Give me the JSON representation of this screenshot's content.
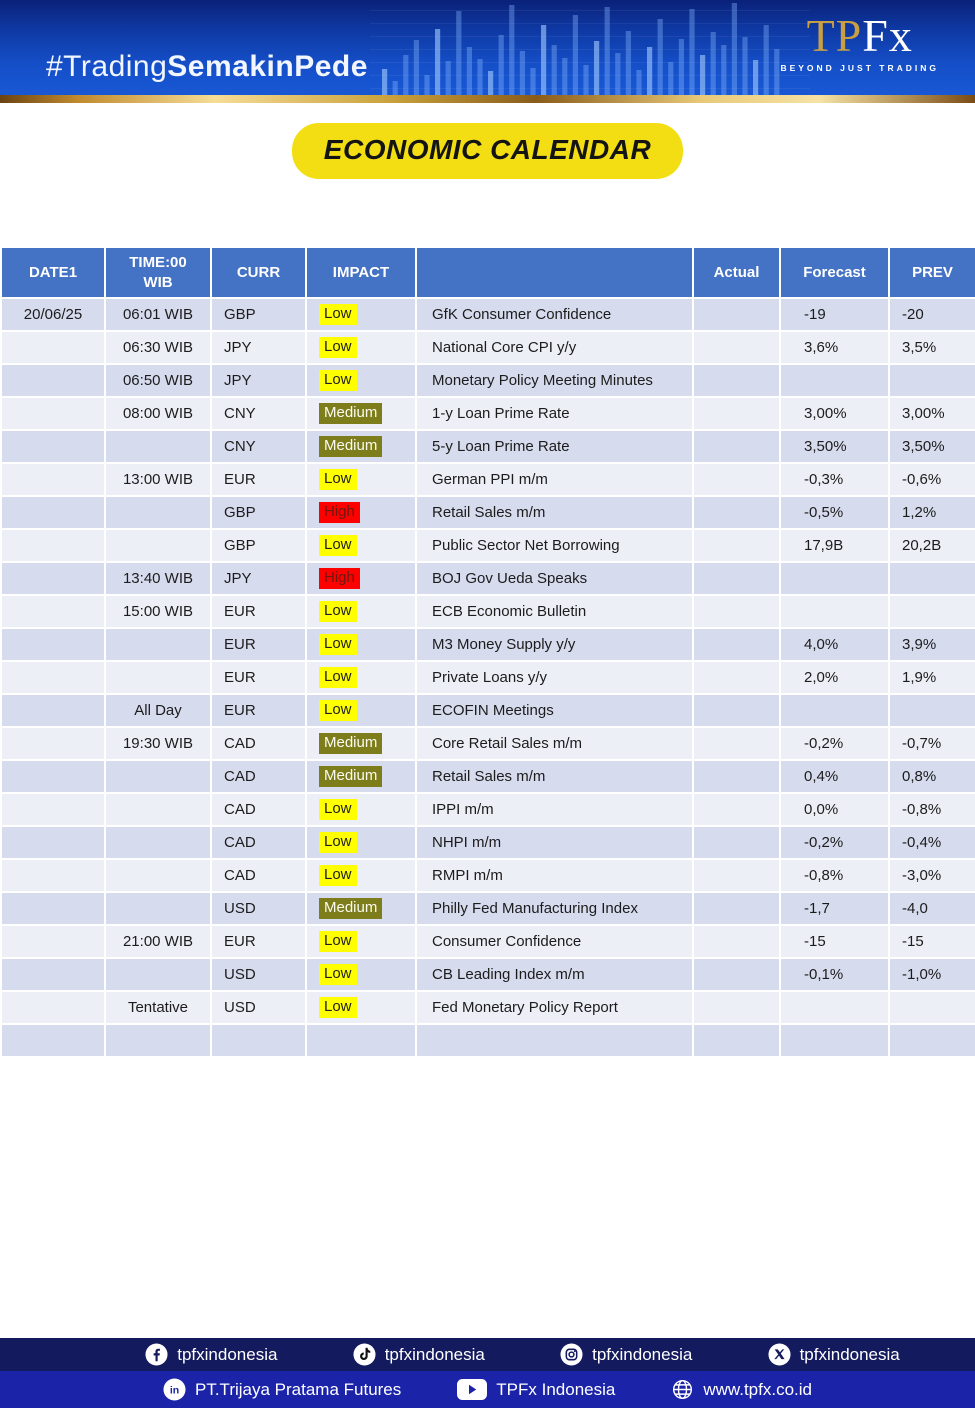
{
  "header": {
    "hashtag_light": "#Trading",
    "hashtag_bold": "SemakinPede",
    "logo_tp": "TP",
    "logo_fx": "Fx",
    "logo_tagline": "BEYOND JUST TRADING"
  },
  "title": "ECONOMIC CALENDAR",
  "table": {
    "headers": [
      "DATE1",
      "TIME:00\nWIB",
      "CURR",
      "IMPACT",
      "",
      "Actual",
      "Forecast",
      "PREV"
    ],
    "rows": [
      {
        "date": "20/06/25",
        "time": "06:01 WIB",
        "curr": "GBP",
        "impact": "Low",
        "event": "GfK Consumer Confidence",
        "actual": "",
        "forecast": "-19",
        "prev": "-20"
      },
      {
        "date": "",
        "time": "06:30 WIB",
        "curr": "JPY",
        "impact": "Low",
        "event": "National Core CPI y/y",
        "actual": "",
        "forecast": "3,6%",
        "prev": "3,5%"
      },
      {
        "date": "",
        "time": "06:50 WIB",
        "curr": "JPY",
        "impact": "Low",
        "event": "Monetary Policy Meeting Minutes",
        "actual": "",
        "forecast": "",
        "prev": ""
      },
      {
        "date": "",
        "time": "08:00 WIB",
        "curr": "CNY",
        "impact": "Medium",
        "event": "1-y Loan Prime Rate",
        "actual": "",
        "forecast": "3,00%",
        "prev": "3,00%"
      },
      {
        "date": "",
        "time": "",
        "curr": "CNY",
        "impact": "Medium",
        "event": "5-y Loan Prime Rate",
        "actual": "",
        "forecast": "3,50%",
        "prev": "3,50%"
      },
      {
        "date": "",
        "time": "13:00 WIB",
        "curr": "EUR",
        "impact": "Low",
        "event": "German PPI m/m",
        "actual": "",
        "forecast": "-0,3%",
        "prev": "-0,6%"
      },
      {
        "date": "",
        "time": "",
        "curr": "GBP",
        "impact": "High",
        "event": "Retail Sales m/m",
        "actual": "",
        "forecast": "-0,5%",
        "prev": "1,2%"
      },
      {
        "date": "",
        "time": "",
        "curr": "GBP",
        "impact": "Low",
        "event": "Public Sector Net Borrowing",
        "actual": "",
        "forecast": "17,9B",
        "prev": "20,2B"
      },
      {
        "date": "",
        "time": "13:40 WIB",
        "curr": "JPY",
        "impact": "High",
        "event": "BOJ Gov Ueda Speaks",
        "actual": "",
        "forecast": "",
        "prev": ""
      },
      {
        "date": "",
        "time": "15:00 WIB",
        "curr": "EUR",
        "impact": "Low",
        "event": "ECB Economic Bulletin",
        "actual": "",
        "forecast": "",
        "prev": ""
      },
      {
        "date": "",
        "time": "",
        "curr": "EUR",
        "impact": "Low",
        "event": "M3 Money Supply y/y",
        "actual": "",
        "forecast": "4,0%",
        "prev": "3,9%"
      },
      {
        "date": "",
        "time": "",
        "curr": "EUR",
        "impact": "Low",
        "event": "Private Loans y/y",
        "actual": "",
        "forecast": "2,0%",
        "prev": "1,9%"
      },
      {
        "date": "",
        "time": "All Day",
        "curr": "EUR",
        "impact": "Low",
        "event": "ECOFIN Meetings",
        "actual": "",
        "forecast": "",
        "prev": ""
      },
      {
        "date": "",
        "time": "19:30 WIB",
        "curr": "CAD",
        "impact": "Medium",
        "event": "Core Retail Sales m/m",
        "actual": "",
        "forecast": "-0,2%",
        "prev": "-0,7%"
      },
      {
        "date": "",
        "time": "",
        "curr": "CAD",
        "impact": "Medium",
        "event": "Retail Sales m/m",
        "actual": "",
        "forecast": "0,4%",
        "prev": "0,8%"
      },
      {
        "date": "",
        "time": "",
        "curr": "CAD",
        "impact": "Low",
        "event": "IPPI m/m",
        "actual": "",
        "forecast": "0,0%",
        "prev": "-0,8%"
      },
      {
        "date": "",
        "time": "",
        "curr": "CAD",
        "impact": "Low",
        "event": "NHPI m/m",
        "actual": "",
        "forecast": "-0,2%",
        "prev": "-0,4%"
      },
      {
        "date": "",
        "time": "",
        "curr": "CAD",
        "impact": "Low",
        "event": "RMPI m/m",
        "actual": "",
        "forecast": "-0,8%",
        "prev": "-3,0%"
      },
      {
        "date": "",
        "time": "",
        "curr": "USD",
        "impact": "Medium",
        "event": "Philly Fed Manufacturing Index",
        "actual": "",
        "forecast": "-1,7",
        "prev": "-4,0"
      },
      {
        "date": "",
        "time": "21:00 WIB",
        "curr": "EUR",
        "impact": "Low",
        "event": "Consumer Confidence",
        "actual": "",
        "forecast": "-15",
        "prev": "-15"
      },
      {
        "date": "",
        "time": "",
        "curr": "USD",
        "impact": "Low",
        "event": "CB Leading Index m/m",
        "actual": "",
        "forecast": "-0,1%",
        "prev": "-1,0%"
      },
      {
        "date": "",
        "time": "Tentative",
        "curr": "USD",
        "impact": "Low",
        "event": "Fed Monetary Policy Report",
        "actual": "",
        "forecast": "",
        "prev": ""
      },
      {
        "date": "",
        "time": "",
        "curr": "",
        "impact": "",
        "event": "",
        "actual": "",
        "forecast": "",
        "prev": ""
      }
    ]
  },
  "impact_colors": {
    "low": "#ffff00",
    "medium": "#7e7d1b",
    "high": "#fe0000"
  },
  "brand_colors": {
    "header_blue": "#4472c4",
    "banner_blue": "#154fc8",
    "footer_navy": "#141a5e",
    "footer_blue": "#1b23a8",
    "badge_yellow": "#f2de12",
    "gold": "#c99f44"
  },
  "footer": {
    "row1": [
      {
        "icon": "facebook-icon",
        "label": "tpfxindonesia"
      },
      {
        "icon": "tiktok-icon",
        "label": "tpfxindonesia"
      },
      {
        "icon": "instagram-icon",
        "label": "tpfxindonesia"
      },
      {
        "icon": "x-icon",
        "label": "tpfxindonesia"
      }
    ],
    "row2": [
      {
        "icon": "linkedin-icon",
        "label": "PT.Trijaya Pratama Futures"
      },
      {
        "icon": "youtube-icon",
        "label": "TPFx Indonesia"
      },
      {
        "icon": "globe-icon",
        "label": "www.tpfx.co.id"
      }
    ]
  }
}
